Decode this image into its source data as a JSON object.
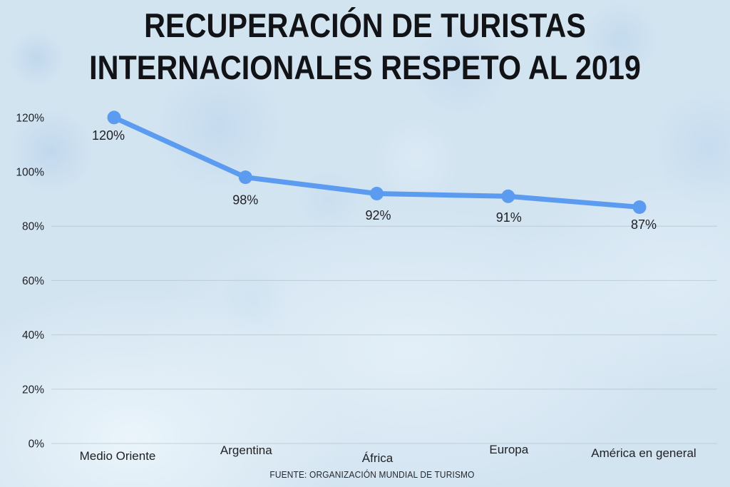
{
  "title": {
    "line1": "RECUPERACIÓN DE TURISTAS",
    "line2": "INTERNACIONALES RESPETO AL 2019"
  },
  "source": "FUENTE: ORGANIZACIÓN MUNDIAL DE TURISMO",
  "colors": {
    "line": "#5b9bf0",
    "background": "#d3e4f1",
    "text": "#1d1f24",
    "gridline": "#aab6c0"
  },
  "chart_data": {
    "type": "line",
    "title": "RECUPERACIÓN DE TURISTAS INTERNACIONALES RESPETO AL 2019",
    "categories": [
      "Medio Oriente",
      "Argentina",
      "África",
      "Europa",
      "América en general"
    ],
    "values": [
      120,
      98,
      92,
      91,
      87
    ],
    "data_labels": [
      "120%",
      "98%",
      "92%",
      "91%",
      "87%"
    ],
    "y_tick_labels": [
      "120%",
      "100%",
      "80%",
      "60%",
      "40%",
      "20%",
      "0%"
    ],
    "y_tick_values": [
      120,
      100,
      80,
      60,
      40,
      20,
      0
    ],
    "gridline_values": [
      80,
      60,
      40,
      20,
      0
    ],
    "ylim": [
      0,
      130
    ],
    "xlabel": "",
    "ylabel": "",
    "grid": "horizontal-faint",
    "legend": "none",
    "marker": "circle",
    "line_color": "#5b9bf0",
    "source": "FUENTE: ORGANIZACIÓN MUNDIAL DE TURISMO"
  }
}
